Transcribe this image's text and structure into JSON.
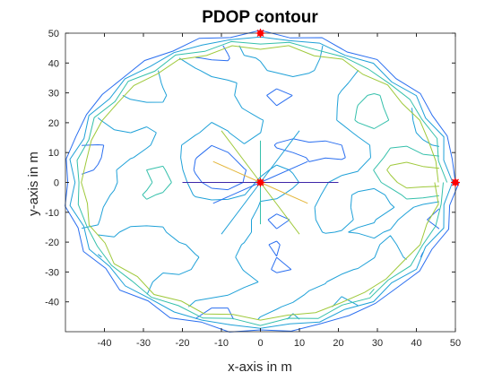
{
  "chart_data": {
    "type": "contour",
    "title": "PDOP contour",
    "xlabel": "x-axis in m",
    "ylabel": "y-axis in m",
    "xlim": [
      -50,
      50
    ],
    "ylim": [
      -50,
      50
    ],
    "xticks": [
      -40,
      -30,
      -20,
      -10,
      0,
      10,
      20,
      30,
      40,
      50
    ],
    "yticks": [
      -40,
      -30,
      -20,
      -10,
      0,
      10,
      20,
      30,
      40,
      50
    ],
    "grid": false,
    "colormap": [
      "#3e26a8",
      "#2b6ff0",
      "#1fa1d8",
      "#35c0ab",
      "#9fc93b",
      "#e4b63a"
    ],
    "markers": [
      {
        "x": 0,
        "y": 50
      },
      {
        "x": 0,
        "y": 0
      },
      {
        "x": 50,
        "y": 0
      }
    ],
    "marker_color": "#ff0000",
    "contour_region_radius": 50
  }
}
